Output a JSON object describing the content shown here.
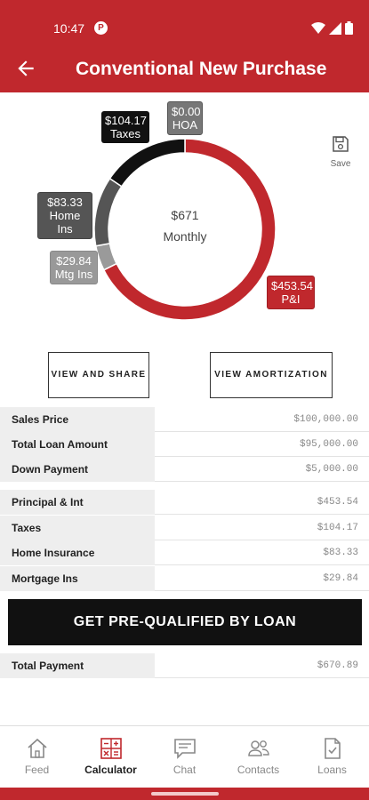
{
  "status": {
    "time": "10:47",
    "badge": "P"
  },
  "header": {
    "title": "Conventional New Purchase"
  },
  "chart": {
    "center_amount": "$671",
    "center_label": "Monthly",
    "labels": {
      "taxes": {
        "amount": "$104.17",
        "name": "Taxes"
      },
      "hoa": {
        "amount": "$0.00",
        "name": "HOA"
      },
      "home_ins": {
        "amount": "$83.33",
        "name": "Home Ins"
      },
      "mtg_ins": {
        "amount": "$29.84",
        "name": "Mtg Ins"
      },
      "pi": {
        "amount": "$453.54",
        "name": "P&I"
      }
    },
    "colors": {
      "pi": "#c0282d",
      "mtg_ins": "#9a9a9a",
      "home_ins": "#555555",
      "taxes": "#111111",
      "hoa": "#777777"
    }
  },
  "chart_data": {
    "type": "pie",
    "categories": [
      "P&I",
      "Mtg Ins",
      "Home Ins",
      "Taxes",
      "HOA"
    ],
    "values": [
      453.54,
      29.84,
      83.33,
      104.17,
      0.0
    ]
  },
  "save": {
    "label": "Save"
  },
  "actions": {
    "share": "VIEW AND SHARE",
    "amortization": "VIEW AMORTIZATION"
  },
  "loan_rows": [
    {
      "label": "Sales Price",
      "value": "$100,000.00"
    },
    {
      "label": "Total Loan Amount",
      "value": "$95,000.00"
    },
    {
      "label": "Down Payment",
      "value": "$5,000.00"
    }
  ],
  "payment_rows": [
    {
      "label": "Principal & Int",
      "value": "$453.54"
    },
    {
      "label": "Taxes",
      "value": "$104.17"
    },
    {
      "label": "Home Insurance",
      "value": "$83.33"
    },
    {
      "label": "Mortgage Ins",
      "value": "$29.84"
    }
  ],
  "prequal": {
    "label": "GET PRE-QUALIFIED BY LOAN"
  },
  "total": {
    "label": "Total Payment",
    "value": "$670.89"
  },
  "nav": [
    {
      "label": "Feed",
      "icon": "home-icon"
    },
    {
      "label": "Calculator",
      "icon": "calculator-icon"
    },
    {
      "label": "Chat",
      "icon": "chat-icon"
    },
    {
      "label": "Contacts",
      "icon": "contacts-icon"
    },
    {
      "label": "Loans",
      "icon": "loans-icon"
    }
  ]
}
